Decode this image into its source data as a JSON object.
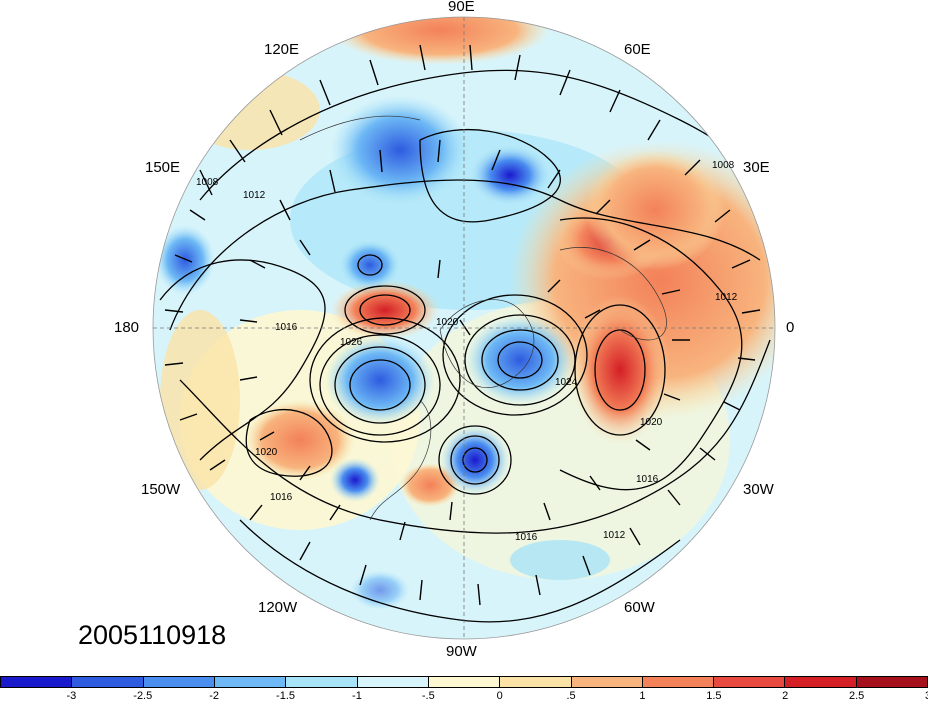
{
  "map": {
    "timestamp": "2005110918",
    "longitude_labels": {
      "lon_90e": "90E",
      "lon_60e": "60E",
      "lon_30e": "30E",
      "lon_0": "0",
      "lon_30w": "30W",
      "lon_60w": "60W",
      "lon_90w": "90W",
      "lon_120w": "120W",
      "lon_150w": "150W",
      "lon_180": "180",
      "lon_150e": "150E",
      "lon_120e": "120E"
    },
    "contour_labels": [
      "1008",
      "1012",
      "1016",
      "1020",
      "1024",
      "1026"
    ],
    "colorbar": {
      "colors": [
        "#1a1acd",
        "#2e5be0",
        "#4a8ef0",
        "#6db8f5",
        "#a8e4f8",
        "#d8f4fb",
        "#fdf7d2",
        "#fbe2a6",
        "#f8b47e",
        "#f38159",
        "#e84a3f",
        "#d41f26",
        "#a5101c"
      ],
      "ticks": [
        "-3",
        "-2.5",
        "-2",
        "-1.5",
        "-1",
        "-.5",
        "0",
        ".5",
        "1",
        "1.5",
        "2",
        "2.5",
        "3"
      ]
    }
  }
}
